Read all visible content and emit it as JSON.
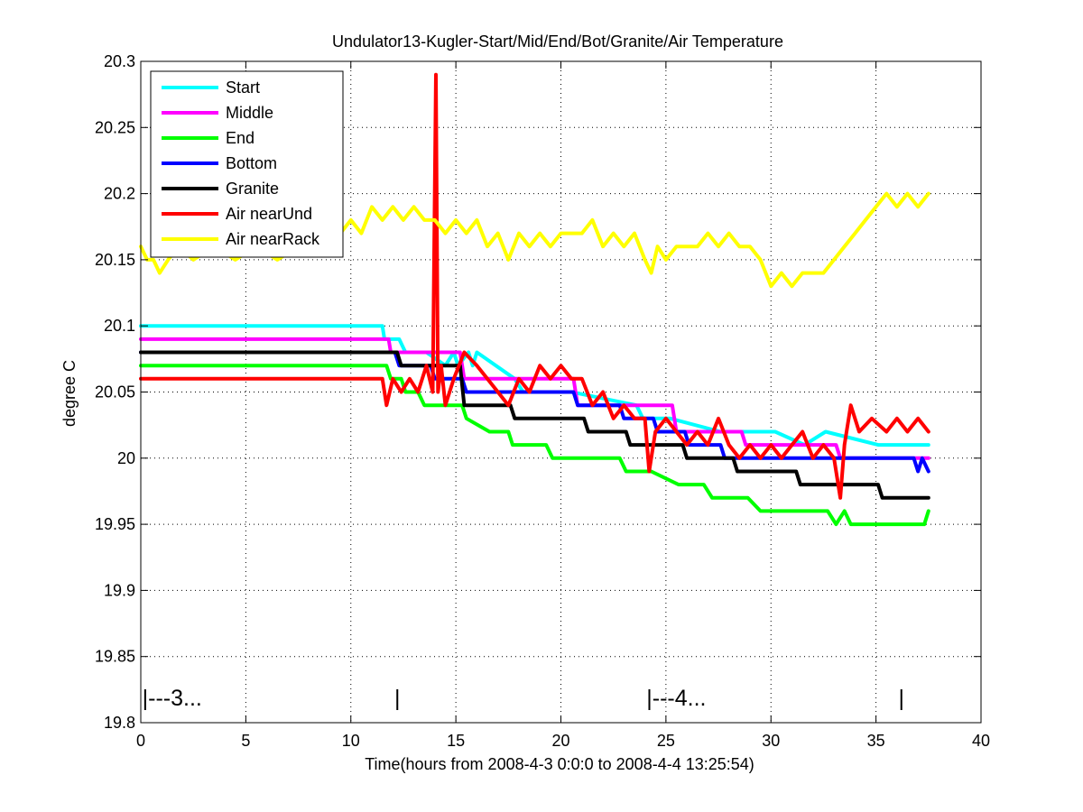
{
  "chart_data": {
    "type": "line",
    "title": "Undulator13-Kugler-Start/Mid/End/Bot/Granite/Air Temperature",
    "xlabel": "Time(hours from 2008-4-3 0:0:0 to 2008-4-4 13:25:54)",
    "ylabel": "degree C",
    "xlim": [
      0,
      40
    ],
    "ylim": [
      19.8,
      20.3
    ],
    "x_ticks": [
      "0",
      "5",
      "10",
      "15",
      "20",
      "25",
      "30",
      "35",
      "40"
    ],
    "y_ticks": [
      "19.8",
      "19.85",
      "19.9",
      "19.95",
      "20",
      "20.05",
      "20.1",
      "20.15",
      "20.2",
      "20.25",
      "20.3"
    ],
    "grid": true,
    "legend_position": "top-left",
    "day_markers": [
      {
        "x": 0.2,
        "label": "|---3..."
      },
      {
        "x": 12.2,
        "label": "|"
      },
      {
        "x": 24.2,
        "label": "|---4..."
      },
      {
        "x": 36.2,
        "label": "|"
      }
    ],
    "series": [
      {
        "name": "Start",
        "color": "#00ffff",
        "x": [
          0,
          11.5,
          11.6,
          12.3,
          12.6,
          13.6,
          14.5,
          14.9,
          15.1,
          15.6,
          15.8,
          16.0,
          17.8,
          18.2,
          20.5,
          23.6,
          23.9,
          25.2,
          27.6,
          30.2,
          31.6,
          32.6,
          35.1,
          37.5
        ],
        "y": [
          20.1,
          20.1,
          20.09,
          20.09,
          20.08,
          20.08,
          20.07,
          20.08,
          20.07,
          20.08,
          20.07,
          20.08,
          20.06,
          20.05,
          20.05,
          20.04,
          20.03,
          20.03,
          20.02,
          20.02,
          20.01,
          20.02,
          20.01,
          20.01
        ]
      },
      {
        "name": "Middle",
        "color": "#ff00ff",
        "x": [
          0,
          11.8,
          11.9,
          15.2,
          15.4,
          20.6,
          20.8,
          25.3,
          25.5,
          28.6,
          28.8,
          33.1,
          33.3,
          37.5
        ],
        "y": [
          20.09,
          20.09,
          20.08,
          20.08,
          20.06,
          20.06,
          20.04,
          20.04,
          20.02,
          20.02,
          20.01,
          20.01,
          20.0,
          20.0
        ]
      },
      {
        "name": "End",
        "color": "#00ff00",
        "x": [
          0,
          11.7,
          11.9,
          12.4,
          12.6,
          13.2,
          13.5,
          14.2,
          15.3,
          15.5,
          16.6,
          17.5,
          17.7,
          19.3,
          19.6,
          22.8,
          23.1,
          24.3,
          25.6,
          26.8,
          27.2,
          28.9,
          29.5,
          32.7,
          33.1,
          33.5,
          33.8,
          37.3,
          37.5
        ],
        "y": [
          20.07,
          20.07,
          20.06,
          20.06,
          20.05,
          20.05,
          20.04,
          20.04,
          20.04,
          20.03,
          20.02,
          20.02,
          20.01,
          20.01,
          20.0,
          20.0,
          19.99,
          19.99,
          19.98,
          19.98,
          19.97,
          19.97,
          19.96,
          19.96,
          19.95,
          19.96,
          19.95,
          19.95,
          19.96
        ]
      },
      {
        "name": "Bottom",
        "color": "#0000ff",
        "x": [
          0,
          12.1,
          12.3,
          13.8,
          14.0,
          15.3,
          15.5,
          20.6,
          20.8,
          22.8,
          23.0,
          24.4,
          24.6,
          25.9,
          26.1,
          27.6,
          27.8,
          31.2,
          31.4,
          36.8,
          37.0,
          37.2,
          37.5
        ],
        "y": [
          20.08,
          20.08,
          20.07,
          20.07,
          20.06,
          20.06,
          20.05,
          20.05,
          20.04,
          20.04,
          20.03,
          20.03,
          20.02,
          20.02,
          20.01,
          20.01,
          20.0,
          20.0,
          20.0,
          20.0,
          19.99,
          20.0,
          19.99
        ]
      },
      {
        "name": "Granite",
        "color": "#000000",
        "x": [
          0,
          12.2,
          12.4,
          15.2,
          15.4,
          17.6,
          17.8,
          21.1,
          21.3,
          23.1,
          23.3,
          24.3,
          24.5,
          25.8,
          26.0,
          28.2,
          28.4,
          31.2,
          31.4,
          35.1,
          35.3,
          37.5
        ],
        "y": [
          20.08,
          20.08,
          20.07,
          20.07,
          20.04,
          20.04,
          20.03,
          20.03,
          20.02,
          20.02,
          20.01,
          20.01,
          20.01,
          20.01,
          20.0,
          20.0,
          19.99,
          19.99,
          19.98,
          19.98,
          19.97,
          19.97
        ]
      },
      {
        "name": "Air nearUnd",
        "color": "#ff0000",
        "x": [
          0,
          11.5,
          11.7,
          12.0,
          12.4,
          12.8,
          13.2,
          13.6,
          13.9,
          14.05,
          14.15,
          14.3,
          14.5,
          14.9,
          15.4,
          16.0,
          16.5,
          17.0,
          17.5,
          18.0,
          18.5,
          19.0,
          19.5,
          20.0,
          20.5,
          21.0,
          21.5,
          22.0,
          22.5,
          23.0,
          23.5,
          24.0,
          24.2,
          24.5,
          25.0,
          25.5,
          26.0,
          26.5,
          27.0,
          27.5,
          28.0,
          28.5,
          29.0,
          29.5,
          30.0,
          30.5,
          31.0,
          31.5,
          32.0,
          32.5,
          33.0,
          33.3,
          33.5,
          33.8,
          34.2,
          34.8,
          35.5,
          36.0,
          36.5,
          37.0,
          37.5
        ],
        "y": [
          20.06,
          20.06,
          20.04,
          20.06,
          20.05,
          20.06,
          20.05,
          20.07,
          20.05,
          20.29,
          20.05,
          20.07,
          20.04,
          20.06,
          20.08,
          20.07,
          20.06,
          20.05,
          20.04,
          20.06,
          20.05,
          20.07,
          20.06,
          20.07,
          20.06,
          20.06,
          20.04,
          20.05,
          20.03,
          20.04,
          20.03,
          20.03,
          19.99,
          20.02,
          20.03,
          20.02,
          20.01,
          20.02,
          20.01,
          20.03,
          20.01,
          20.0,
          20.01,
          20.0,
          20.01,
          20.0,
          20.01,
          20.02,
          20.0,
          20.01,
          20.0,
          19.97,
          20.01,
          20.04,
          20.02,
          20.03,
          20.02,
          20.03,
          20.02,
          20.03,
          20.02
        ]
      },
      {
        "name": "Air nearRack",
        "color": "#ffff00",
        "x": [
          0,
          0.3,
          0.6,
          0.9,
          1.3,
          1.8,
          2.5,
          3.5,
          4.5,
          5.5,
          6.5,
          7.5,
          8.5,
          9.0,
          9.5,
          10.0,
          10.5,
          11.0,
          11.5,
          12.0,
          12.5,
          13.0,
          13.5,
          14.0,
          14.5,
          15.0,
          15.5,
          16.0,
          16.5,
          17.0,
          17.5,
          18.0,
          18.5,
          19.0,
          19.5,
          20.0,
          20.5,
          21.0,
          21.5,
          22.0,
          22.5,
          23.0,
          23.5,
          24.0,
          24.3,
          24.6,
          25.0,
          25.5,
          26.0,
          26.5,
          27.0,
          27.5,
          28.0,
          28.5,
          29.0,
          29.5,
          30.0,
          30.5,
          31.0,
          31.5,
          32.0,
          32.5,
          33.0,
          33.5,
          34.0,
          34.5,
          35.0,
          35.5,
          36.0,
          36.5,
          37.0,
          37.5
        ],
        "y": [
          20.16,
          20.15,
          20.15,
          20.14,
          20.15,
          20.16,
          20.15,
          20.16,
          20.15,
          20.16,
          20.15,
          20.16,
          20.17,
          20.16,
          20.17,
          20.18,
          20.17,
          20.19,
          20.18,
          20.19,
          20.18,
          20.19,
          20.18,
          20.18,
          20.17,
          20.18,
          20.17,
          20.18,
          20.16,
          20.17,
          20.15,
          20.17,
          20.16,
          20.17,
          20.16,
          20.17,
          20.17,
          20.17,
          20.18,
          20.16,
          20.17,
          20.16,
          20.17,
          20.15,
          20.14,
          20.16,
          20.15,
          20.16,
          20.16,
          20.16,
          20.17,
          20.16,
          20.17,
          20.16,
          20.16,
          20.15,
          20.13,
          20.14,
          20.13,
          20.14,
          20.14,
          20.14,
          20.15,
          20.16,
          20.17,
          20.18,
          20.19,
          20.2,
          20.19,
          20.2,
          20.19,
          20.2
        ]
      }
    ]
  }
}
